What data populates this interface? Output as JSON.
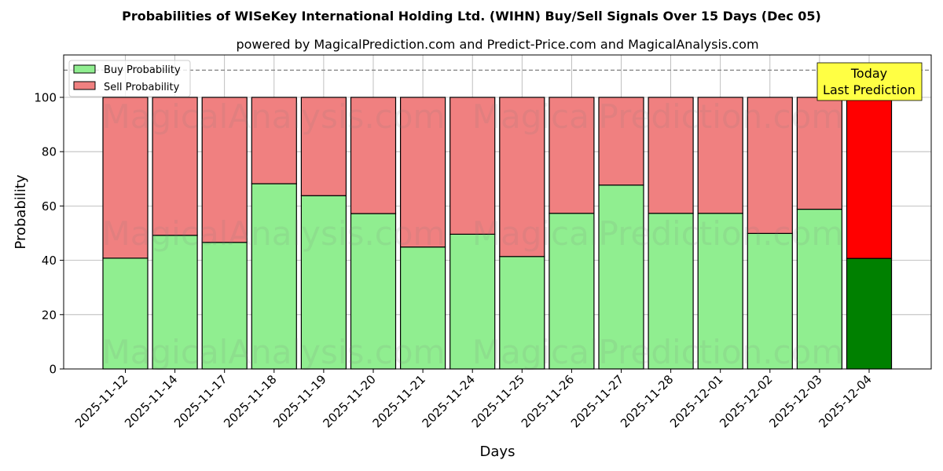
{
  "chart_data": {
    "type": "bar",
    "stacked": true,
    "title": "Probabilities of WISeKey International Holding Ltd. (WIHN) Buy/Sell Signals Over 15 Days (Dec 05)",
    "subtitle": "powered by MagicalPrediction.com and Predict-Price.com and MagicalAnalysis.com",
    "xlabel": "Days",
    "ylabel": "Probability",
    "ylim": [
      0,
      115
    ],
    "yticks": [
      0,
      20,
      40,
      60,
      80,
      100
    ],
    "grid": true,
    "legend_position": "upper left",
    "reference_line": {
      "y": 110,
      "style": "dashed",
      "color": "#808080"
    },
    "categories": [
      "2025-11-12",
      "2025-11-14",
      "2025-11-17",
      "2025-11-18",
      "2025-11-19",
      "2025-11-20",
      "2025-11-21",
      "2025-11-24",
      "2025-11-25",
      "2025-11-26",
      "2025-11-27",
      "2025-11-28",
      "2025-12-01",
      "2025-12-02",
      "2025-12-03",
      "2025-12-04"
    ],
    "series": [
      {
        "name": "Buy Probability",
        "color": "#90ee90",
        "values": [
          40.8,
          49.2,
          46.6,
          68.2,
          63.8,
          57.2,
          44.9,
          49.6,
          41.4,
          57.3,
          67.7,
          57.3,
          57.3,
          49.9,
          58.8,
          40.7
        ]
      },
      {
        "name": "Sell Probability",
        "color": "#f08080",
        "values": [
          59.2,
          50.8,
          53.4,
          31.8,
          36.2,
          42.8,
          55.1,
          50.4,
          58.6,
          42.7,
          32.3,
          42.7,
          42.7,
          50.1,
          41.2,
          59.3
        ]
      }
    ],
    "highlight": {
      "index": 15,
      "buy_color": "#008000",
      "sell_color": "#ff0000"
    },
    "annotation": {
      "line1": "Today",
      "line2": "Last Prediction",
      "background": "#ffff44"
    },
    "watermarks": [
      "MagicalAnalysis.com",
      "MagicalPrediction.com"
    ]
  }
}
